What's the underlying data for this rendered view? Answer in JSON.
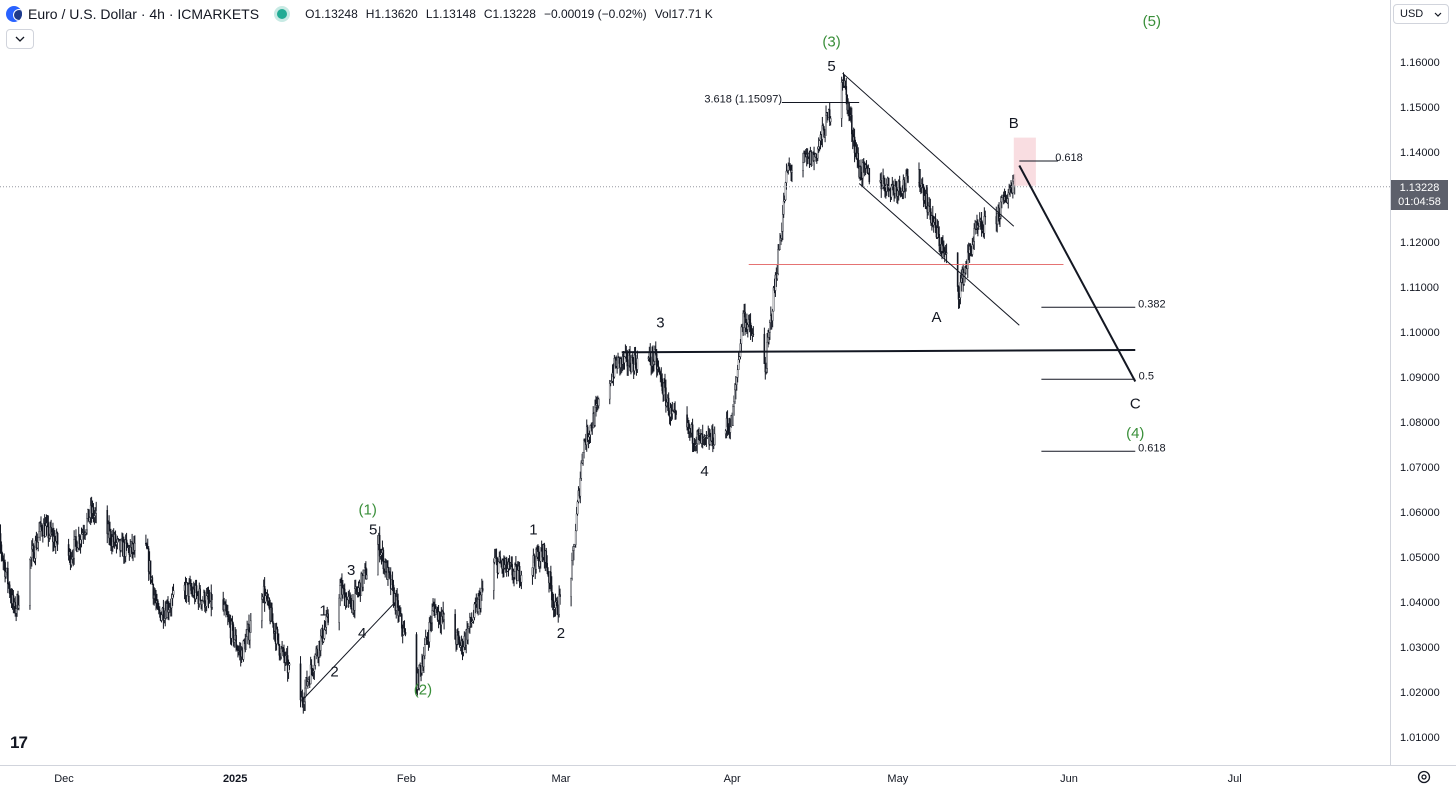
{
  "header": {
    "title": "Euro / U.S. Dollar · 4h · ICMARKETS",
    "open": "O1.13248",
    "high": "H1.13620",
    "low": "L1.13148",
    "close": "C1.13228",
    "change": "−0.00019 (−0.02%)",
    "volume": "Vol17.71 K",
    "collapse_icon": "chevron-down-icon",
    "status_color": "#22ab94"
  },
  "currency": {
    "label": "USD",
    "icon": "chevron-down-icon"
  },
  "price_label": {
    "value": "1.13228",
    "countdown": "01:04:58"
  },
  "logo": {
    "text": "17"
  },
  "settings_icon": "gear-icon",
  "chart_data": {
    "type": "candlestick",
    "symbol": "EURUSD",
    "timeframe": "4h",
    "ylim": [
      1.005,
      1.168
    ],
    "yticks": [
      "1.16000",
      "1.15000",
      "1.14000",
      "1.13000",
      "1.12000",
      "1.11000",
      "1.10000",
      "1.09000",
      "1.08000",
      "1.07000",
      "1.06000",
      "1.05000",
      "1.04000",
      "1.03000",
      "1.02000",
      "1.01000"
    ],
    "xticks": [
      {
        "label": "Dec",
        "date": "2024-12-01",
        "bold": false
      },
      {
        "label": "2025",
        "date": "2025-01-01",
        "bold": true
      },
      {
        "label": "Feb",
        "date": "2025-02-01",
        "bold": false
      },
      {
        "label": "Mar",
        "date": "2025-03-01",
        "bold": false
      },
      {
        "label": "Apr",
        "date": "2025-04-01",
        "bold": false
      },
      {
        "label": "May",
        "date": "2025-05-01",
        "bold": false
      },
      {
        "label": "Jun",
        "date": "2025-06-01",
        "bold": false
      },
      {
        "label": "Jul",
        "date": "2025-07-01",
        "bold": false
      }
    ],
    "price_path": [
      [
        "2024-11-18",
        1.061
      ],
      [
        "2024-11-22",
        1.038
      ],
      [
        "2024-11-27",
        1.057
      ],
      [
        "2024-12-02",
        1.05
      ],
      [
        "2024-12-06",
        1.06
      ],
      [
        "2024-12-11",
        1.052
      ],
      [
        "2024-12-16",
        1.051
      ],
      [
        "2024-12-18",
        1.037
      ],
      [
        "2024-12-23",
        1.043
      ],
      [
        "2024-12-30",
        1.038
      ],
      [
        "2025-01-02",
        1.028
      ],
      [
        "2025-01-06",
        1.043
      ],
      [
        "2025-01-09",
        1.03
      ],
      [
        "2025-01-13",
        1.018
      ],
      [
        "2025-01-16",
        1.03
      ],
      [
        "2025-01-20",
        1.043
      ],
      [
        "2025-01-22",
        1.039
      ],
      [
        "2025-01-27",
        1.053
      ],
      [
        "2025-01-30",
        1.04
      ],
      [
        "2025-02-03",
        1.022
      ],
      [
        "2025-02-06",
        1.039
      ],
      [
        "2025-02-11",
        1.03
      ],
      [
        "2025-02-17",
        1.049
      ],
      [
        "2025-02-21",
        1.046
      ],
      [
        "2025-02-26",
        1.051
      ],
      [
        "2025-02-28",
        1.038
      ],
      [
        "2025-03-03",
        1.047
      ],
      [
        "2025-03-05",
        1.075
      ],
      [
        "2025-03-11",
        1.093
      ],
      [
        "2025-03-18",
        1.094
      ],
      [
        "2025-03-21",
        1.081
      ],
      [
        "2025-03-27",
        1.075
      ],
      [
        "2025-04-01",
        1.08
      ],
      [
        "2025-04-03",
        1.104
      ],
      [
        "2025-04-07",
        1.092
      ],
      [
        "2025-04-10",
        1.124
      ],
      [
        "2025-04-11",
        1.136
      ],
      [
        "2025-04-16",
        1.139
      ],
      [
        "2025-04-21",
        1.157
      ],
      [
        "2025-04-24",
        1.136
      ],
      [
        "2025-04-30",
        1.132
      ],
      [
        "2025-05-05",
        1.134
      ],
      [
        "2025-05-08",
        1.122
      ],
      [
        "2025-05-12",
        1.109
      ],
      [
        "2025-05-15",
        1.122
      ],
      [
        "2025-05-19",
        1.126
      ],
      [
        "2025-05-21",
        1.131
      ],
      [
        "2025-05-22",
        1.134
      ],
      [
        "2025-05-23",
        1.1363
      ]
    ],
    "last_price": 1.13228,
    "lines": [
      {
        "name": "resistance-support-line",
        "from": [
          "2025-03-12",
          1.0955
        ],
        "to": [
          "2025-06-13",
          1.096
        ],
        "color": "#131722",
        "width": 2
      },
      {
        "name": "red-level-line",
        "from": [
          "2025-04-04",
          1.115
        ],
        "to": [
          "2025-05-31",
          1.115
        ],
        "color": "#e57373",
        "width": 1
      },
      {
        "name": "fib-3618-line",
        "from": [
          "2025-04-10",
          1.151
        ],
        "to": [
          "2025-04-24",
          1.151
        ],
        "color": "#131722",
        "width": 1
      },
      {
        "name": "channel-upper-line",
        "from": [
          "2025-04-21",
          1.1575
        ],
        "to": [
          "2025-05-22",
          1.1235
        ],
        "color": "#131722",
        "width": 1
      },
      {
        "name": "channel-lower-line",
        "from": [
          "2025-04-24",
          1.133
        ],
        "to": [
          "2025-05-23",
          1.1015
        ],
        "color": "#131722",
        "width": 1
      },
      {
        "name": "wave-c-projection",
        "from": [
          "2025-05-23",
          1.137
        ],
        "to": [
          "2025-06-13",
          1.089
        ],
        "color": "#131722",
        "width": 2
      },
      {
        "name": "fib-0618-upper-line",
        "from": [
          "2025-05-23",
          1.138
        ],
        "to": [
          "2025-05-30",
          1.138
        ],
        "color": "#131722",
        "width": 1
      },
      {
        "name": "fib-0382-line",
        "from": [
          "2025-05-27",
          1.1055
        ],
        "to": [
          "2025-06-13",
          1.1055
        ],
        "color": "#131722",
        "width": 1
      },
      {
        "name": "fib-05-line",
        "from": [
          "2025-05-27",
          1.0895
        ],
        "to": [
          "2025-06-13",
          1.0895
        ],
        "color": "#131722",
        "width": 1
      },
      {
        "name": "fib-0618-lower-line",
        "from": [
          "2025-05-27",
          1.0735
        ],
        "to": [
          "2025-06-13",
          1.0735
        ],
        "color": "#131722",
        "width": 1
      },
      {
        "name": "wedge-lower-line",
        "from": [
          "2025-01-13",
          1.018
        ],
        "to": [
          "2025-01-30",
          1.04
        ],
        "color": "#131722",
        "width": 1
      }
    ],
    "zones": [
      {
        "name": "target-zone",
        "from": [
          "2025-05-22",
          1.1432
        ],
        "to": [
          "2025-05-26",
          1.1325
        ],
        "color": "#f8d7dc"
      }
    ],
    "annotations": [
      {
        "text": "(5)",
        "date": "2025-06-16",
        "price": 1.168,
        "color": "#3a8f3a"
      },
      {
        "text": "(3)",
        "date": "2025-04-19",
        "price": 1.1635,
        "color": "#3a8f3a"
      },
      {
        "text": "5",
        "date": "2025-04-19",
        "price": 1.158,
        "color": "#131722"
      },
      {
        "text": "3.618 (1.15097)",
        "date": "2025-04-03",
        "price": 1.151,
        "color": "#131722",
        "small": true
      },
      {
        "text": "B",
        "date": "2025-05-22",
        "price": 1.1453,
        "color": "#131722"
      },
      {
        "text": "0.618",
        "date": "2025-06-01",
        "price": 1.138,
        "color": "#131722",
        "small": true
      },
      {
        "text": "A",
        "date": "2025-05-08",
        "price": 1.1022,
        "color": "#131722"
      },
      {
        "text": "0.382",
        "date": "2025-06-16",
        "price": 1.1055,
        "color": "#131722",
        "small": true
      },
      {
        "text": "3",
        "date": "2025-03-19",
        "price": 1.101,
        "color": "#131722"
      },
      {
        "text": "0.5",
        "date": "2025-06-15",
        "price": 1.0895,
        "color": "#131722",
        "small": true
      },
      {
        "text": "C",
        "date": "2025-06-13",
        "price": 1.083,
        "color": "#131722"
      },
      {
        "text": "(4)",
        "date": "2025-06-13",
        "price": 1.0765,
        "color": "#3a8f3a"
      },
      {
        "text": "0.618",
        "date": "2025-06-16",
        "price": 1.0735,
        "color": "#131722",
        "small": true
      },
      {
        "text": "4",
        "date": "2025-03-27",
        "price": 1.068,
        "color": "#131722"
      },
      {
        "text": "(1)",
        "date": "2025-01-25",
        "price": 1.0595,
        "color": "#3a8f3a"
      },
      {
        "text": "5",
        "date": "2025-01-26",
        "price": 1.055,
        "color": "#131722"
      },
      {
        "text": "1",
        "date": "2025-02-24",
        "price": 1.055,
        "color": "#131722"
      },
      {
        "text": "3",
        "date": "2025-01-22",
        "price": 1.046,
        "color": "#131722"
      },
      {
        "text": "1",
        "date": "2025-01-17",
        "price": 1.037,
        "color": "#131722"
      },
      {
        "text": "4",
        "date": "2025-01-24",
        "price": 1.032,
        "color": "#131722"
      },
      {
        "text": "2",
        "date": "2025-03-01",
        "price": 1.032,
        "color": "#131722"
      },
      {
        "text": "2",
        "date": "2025-01-19",
        "price": 1.0235,
        "color": "#131722"
      },
      {
        "text": "(2)",
        "date": "2025-02-04",
        "price": 1.0195,
        "color": "#3a8f3a"
      }
    ],
    "bull_color": "#131722",
    "bear_color": "#131722",
    "grid": false
  }
}
